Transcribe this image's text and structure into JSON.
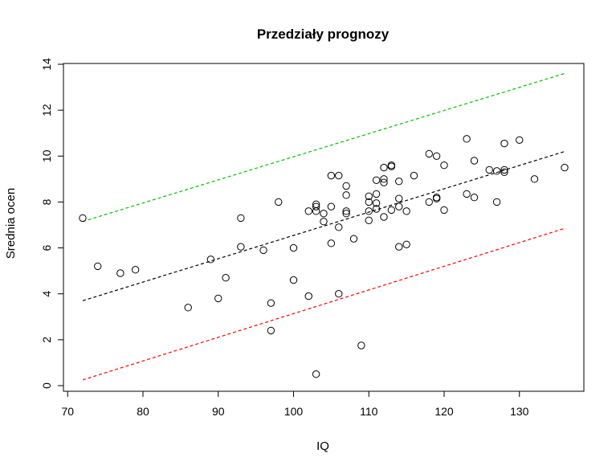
{
  "chart_data": {
    "type": "scatter",
    "title": "Przedziały prognozy",
    "xlabel": "IQ",
    "ylabel": "Srednia ocen",
    "xlim": [
      72,
      136
    ],
    "ylim": [
      0,
      14
    ],
    "xticks": [
      70,
      80,
      90,
      100,
      110,
      120,
      130
    ],
    "yticks": [
      0,
      2,
      4,
      6,
      8,
      10,
      12,
      14
    ],
    "grid": false,
    "points": [
      [
        72,
        7.3
      ],
      [
        74,
        5.2
      ],
      [
        77,
        4.9
      ],
      [
        79,
        5.05
      ],
      [
        86,
        3.4
      ],
      [
        89,
        5.5
      ],
      [
        90,
        3.8
      ],
      [
        91,
        4.7
      ],
      [
        93,
        7.3
      ],
      [
        93,
        6.05
      ],
      [
        96,
        5.9
      ],
      [
        97,
        3.6
      ],
      [
        97,
        2.4
      ],
      [
        98,
        8.0
      ],
      [
        100,
        6.0
      ],
      [
        100,
        4.6
      ],
      [
        102,
        7.6
      ],
      [
        102,
        3.9
      ],
      [
        103,
        7.9
      ],
      [
        103,
        7.8
      ],
      [
        103,
        7.6
      ],
      [
        103,
        0.5
      ],
      [
        104,
        7.5
      ],
      [
        104,
        7.15
      ],
      [
        105,
        9.15
      ],
      [
        105,
        7.8
      ],
      [
        105,
        6.2
      ],
      [
        106,
        9.15
      ],
      [
        106,
        6.9
      ],
      [
        106,
        4.0
      ],
      [
        107,
        8.7
      ],
      [
        107,
        8.3
      ],
      [
        107,
        7.6
      ],
      [
        107,
        7.5
      ],
      [
        108,
        6.4
      ],
      [
        109,
        1.75
      ],
      [
        110,
        8.25
      ],
      [
        110,
        8.0
      ],
      [
        110,
        7.6
      ],
      [
        110,
        7.2
      ],
      [
        111,
        8.95
      ],
      [
        111,
        8.35
      ],
      [
        111,
        7.95
      ],
      [
        111,
        7.7
      ],
      [
        112,
        9.5
      ],
      [
        112,
        9.0
      ],
      [
        112,
        8.85
      ],
      [
        112,
        7.35
      ],
      [
        113,
        9.6
      ],
      [
        113,
        9.55
      ],
      [
        113,
        7.65
      ],
      [
        114,
        8.9
      ],
      [
        114,
        8.15
      ],
      [
        114,
        7.8
      ],
      [
        114,
        6.05
      ],
      [
        115,
        7.6
      ],
      [
        115,
        6.15
      ],
      [
        116,
        9.15
      ],
      [
        118,
        10.1
      ],
      [
        118,
        8.0
      ],
      [
        119,
        10.0
      ],
      [
        119,
        8.2
      ],
      [
        119,
        8.15
      ],
      [
        120,
        9.6
      ],
      [
        120,
        7.65
      ],
      [
        123,
        10.75
      ],
      [
        123,
        8.35
      ],
      [
        124,
        9.8
      ],
      [
        124,
        8.2
      ],
      [
        126,
        9.4
      ],
      [
        127,
        9.35
      ],
      [
        127,
        8.0
      ],
      [
        128,
        10.55
      ],
      [
        128,
        9.4
      ],
      [
        128,
        9.3
      ],
      [
        130,
        10.7
      ],
      [
        132,
        9.0
      ],
      [
        136,
        9.5
      ]
    ],
    "series": [
      {
        "line": [
          [
            72,
            3.7
          ],
          [
            136,
            10.2
          ]
        ],
        "color": "#000000"
      },
      {
        "line": [
          [
            72,
            7.15
          ],
          [
            136,
            13.6
          ]
        ],
        "color": "#00c000"
      },
      {
        "line": [
          [
            72,
            0.25
          ],
          [
            136,
            6.85
          ]
        ],
        "color": "#ff0000"
      }
    ]
  }
}
